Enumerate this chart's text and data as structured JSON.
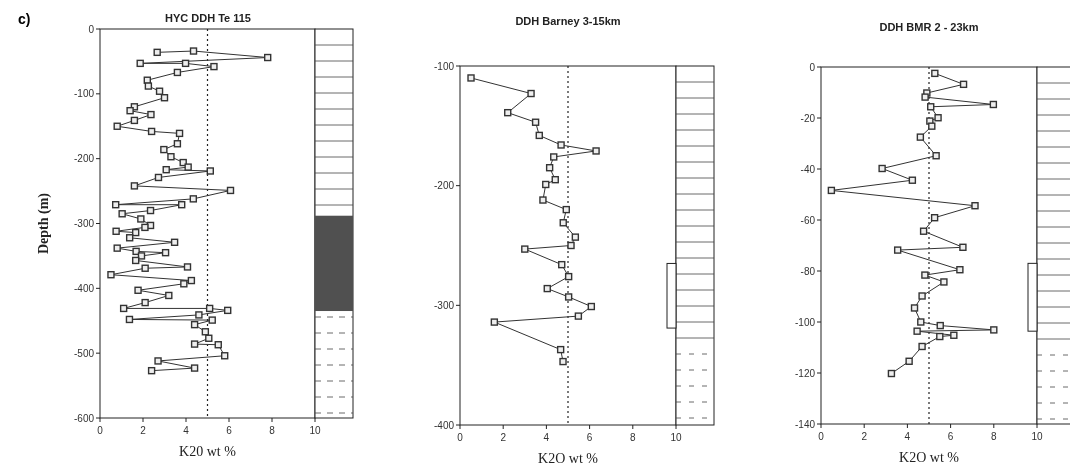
{
  "chart_data": [
    {
      "type": "line",
      "title": "HYC DDH Te 115",
      "xlabel": "K20 wt %",
      "ylabel": "Depth  (m)",
      "annotations": [
        "c)"
      ],
      "xlim": [
        0,
        10
      ],
      "xticks": [
        0,
        2,
        4,
        6,
        8,
        10
      ],
      "ylim": [
        -600,
        0
      ],
      "yticks": [
        -600,
        -500,
        -400,
        -300,
        -200,
        -100,
        0
      ],
      "marker": "square",
      "line_style": "solid",
      "grid": false,
      "ref_lines": [
        {
          "axis": "x",
          "value": 5,
          "line_style": "dotted",
          "color": "#222222"
        }
      ],
      "series": [
        {
          "color": "#333333",
          "x": [
            2.66,
            4.35,
            7.8,
            1.87,
            3.98,
            5.3,
            3.6,
            2.2,
            2.25,
            2.77,
            3.0,
            1.6,
            1.4,
            2.37,
            1.6,
            0.8,
            2.4,
            3.7,
            3.6,
            2.97,
            3.3,
            3.87,
            4.1,
            3.08,
            5.13,
            2.72,
            1.6,
            6.07,
            4.34,
            0.73,
            3.8,
            2.35,
            1.03,
            1.9,
            2.35,
            2.09,
            0.75,
            1.66,
            1.38,
            3.47,
            0.8,
            1.68,
            3.05,
            1.93,
            1.66,
            4.07,
            2.1,
            0.51,
            4.25,
            3.9,
            1.77,
            3.2,
            2.1,
            1.1,
            5.1,
            5.94,
            4.6,
            1.37,
            5.22,
            4.4,
            4.9,
            5.06,
            4.4,
            5.5,
            5.8,
            2.7,
            4.4,
            2.4
          ],
          "values": [
            -36,
            -34,
            -44,
            -53,
            -53,
            -58,
            -67,
            -79,
            -88,
            -96,
            -106,
            -120,
            -126,
            -132,
            -141,
            -150,
            -158,
            -161,
            -177,
            -186,
            -197,
            -206,
            -213,
            -217,
            -219,
            -229,
            -242,
            -249,
            -262,
            -271,
            -271,
            -280,
            -285,
            -293,
            -303,
            -306,
            -312,
            -314,
            -322,
            -329,
            -338,
            -343,
            -345,
            -350,
            -357,
            -367,
            -369,
            -379,
            -388,
            -393,
            -403,
            -411,
            -422,
            -431,
            -431,
            -434,
            -441,
            -448,
            -449,
            -456,
            -467,
            -477,
            -486,
            -487,
            -504,
            -512,
            -523,
            -527
          ]
        }
      ]
    },
    {
      "type": "line",
      "title": "DDH Barney 3-15km",
      "xlabel": "K2O wt %",
      "xlim": [
        0,
        10
      ],
      "xticks": [
        0,
        2,
        4,
        6,
        8,
        10
      ],
      "ylim": [
        -400,
        -100
      ],
      "yticks": [
        -400,
        -300,
        -200,
        -100
      ],
      "marker": "square",
      "line_style": "solid",
      "grid": false,
      "ref_lines": [
        {
          "axis": "x",
          "value": 5,
          "line_style": "dotted",
          "color": "#222222"
        }
      ],
      "series": [
        {
          "color": "#333333",
          "x": [
            0.51,
            3.29,
            2.21,
            3.5,
            3.67,
            4.68,
            6.3,
            4.34,
            4.15,
            4.41,
            3.97,
            3.84,
            4.92,
            4.78,
            5.34,
            5.14,
            3.0,
            4.71,
            5.03,
            4.04,
            5.03,
            6.08,
            5.48,
            1.59,
            4.66,
            4.77
          ],
          "values": [
            -110,
            -123,
            -139,
            -147,
            -158,
            -166,
            -171,
            -176,
            -185,
            -195,
            -199,
            -212,
            -220,
            -231,
            -243,
            -250,
            -253,
            -266,
            -276,
            -286,
            -293,
            -301,
            -309,
            -314,
            -337,
            -347
          ]
        }
      ]
    },
    {
      "type": "line",
      "title": "DDH BMR 2 - 23km",
      "xlabel": "K2O wt %",
      "xlim": [
        0,
        10
      ],
      "xticks": [
        0,
        2,
        4,
        6,
        8,
        10
      ],
      "ylim": [
        -140,
        0
      ],
      "yticks": [
        -140,
        -120,
        -100,
        -80,
        -60,
        -40,
        -20,
        0
      ],
      "marker": "square",
      "line_style": "solid",
      "grid": false,
      "ref_lines": [
        {
          "axis": "x",
          "value": 5,
          "line_style": "dotted",
          "color": "#222222"
        }
      ],
      "series": [
        {
          "color": "#333333",
          "x": [
            5.27,
            6.6,
            4.9,
            4.82,
            7.98,
            5.08,
            5.42,
            5.04,
            5.13,
            4.6,
            5.33,
            2.83,
            4.23,
            0.48,
            7.13,
            5.26,
            4.75,
            6.57,
            3.55,
            6.43,
            4.81,
            5.69,
            4.68,
            4.33,
            4.62,
            5.52,
            8.0,
            4.45,
            6.15,
            5.5,
            4.68,
            4.08,
            3.26
          ],
          "values": [
            -2.5,
            -6.8,
            -10.2,
            -11.8,
            -14.7,
            -15.6,
            -19.9,
            -21.2,
            -23.2,
            -27.5,
            -34.8,
            -39.8,
            -44.4,
            -48.4,
            -54.4,
            -59.1,
            -64.4,
            -70.7,
            -71.8,
            -79.5,
            -81.6,
            -84.3,
            -89.8,
            -94.5,
            -100,
            -101.4,
            -103.1,
            -103.6,
            -105.2,
            -105.7,
            -109.6,
            -115.4,
            -120.2
          ]
        }
      ]
    }
  ]
}
